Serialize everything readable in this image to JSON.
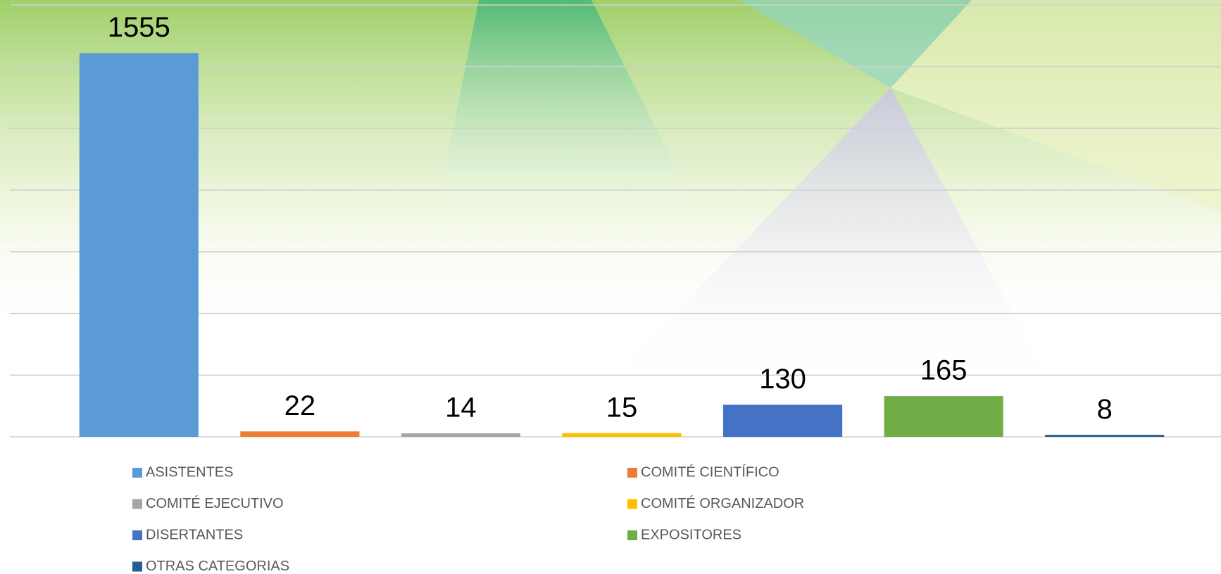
{
  "chart_data": {
    "type": "bar",
    "series": [
      {
        "name": "ASISTENTES",
        "color": "#5b9bd5",
        "values": [
          1555
        ]
      },
      {
        "name": "COMITÉ CIENTÍFICO",
        "color": "#ed7d31",
        "values": [
          22
        ]
      },
      {
        "name": "COMITÉ EJECUTIVO",
        "color": "#a5a5a5",
        "values": [
          14
        ]
      },
      {
        "name": "COMITÉ ORGANIZADOR",
        "color": "#ffc000",
        "values": [
          15
        ]
      },
      {
        "name": "DISERTANTES",
        "color": "#4472c4",
        "values": [
          130
        ]
      },
      {
        "name": "EXPOSITORES",
        "color": "#70ad47",
        "values": [
          165
        ]
      },
      {
        "name": "OTRAS CATEGORIAS",
        "color": "#255e91",
        "values": [
          8
        ]
      }
    ],
    "ylim": [
      0,
      1750
    ],
    "yticks": [
      0,
      250,
      500,
      750,
      1000,
      1250,
      1500,
      1750
    ],
    "grid": true
  }
}
